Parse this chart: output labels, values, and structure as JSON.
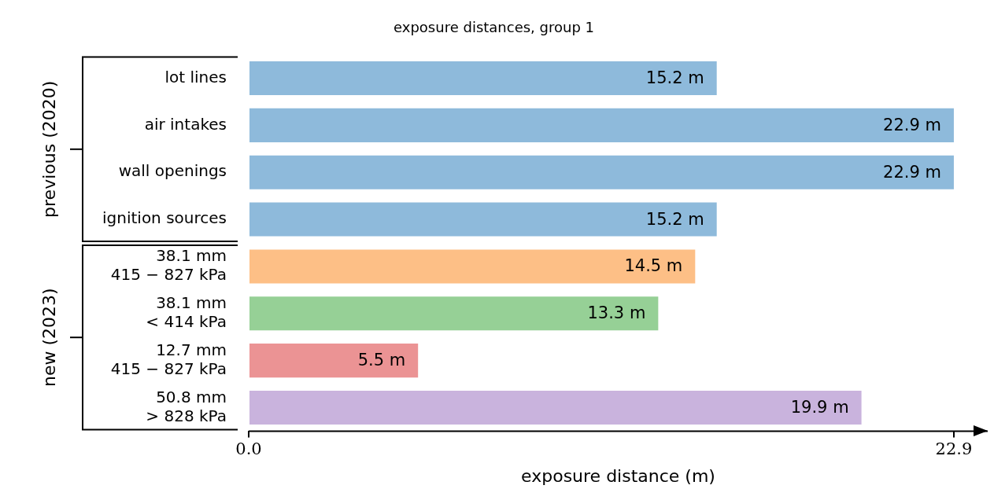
{
  "chart_data": {
    "type": "bar",
    "orientation": "horizontal",
    "title": "exposure distances, group 1",
    "xlabel": "exposure distance (m)",
    "categories": [
      "lot lines",
      "air intakes",
      "wall openings",
      "ignition sources",
      "38.1 mm\n415 − 827 kPa",
      "38.1 mm\n< 414 kPa",
      "12.7 mm\n415 − 827 kPa",
      "50.8 mm\n> 828 kPa"
    ],
    "values": [
      15.2,
      22.9,
      22.9,
      15.2,
      14.5,
      13.3,
      5.5,
      19.9
    ],
    "colors": [
      "#8ebadb",
      "#8ebadb",
      "#8ebadb",
      "#8ebadb",
      "#fdbf86",
      "#96d096",
      "#eb9394",
      "#c9b3dd"
    ],
    "value_labels": [
      "15.2 m",
      "22.9 m",
      "22.9 m",
      "15.2 m",
      "14.5 m",
      "13.3 m",
      "5.5 m",
      "19.9 m"
    ],
    "annotations": [
      "previous (2020)",
      "new (2023)"
    ],
    "xlim": [
      0,
      24
    ],
    "xticks": [
      {
        "value": 0,
        "label": "0.0"
      },
      22.9
    ],
    "grid": false,
    "legend": false
  }
}
